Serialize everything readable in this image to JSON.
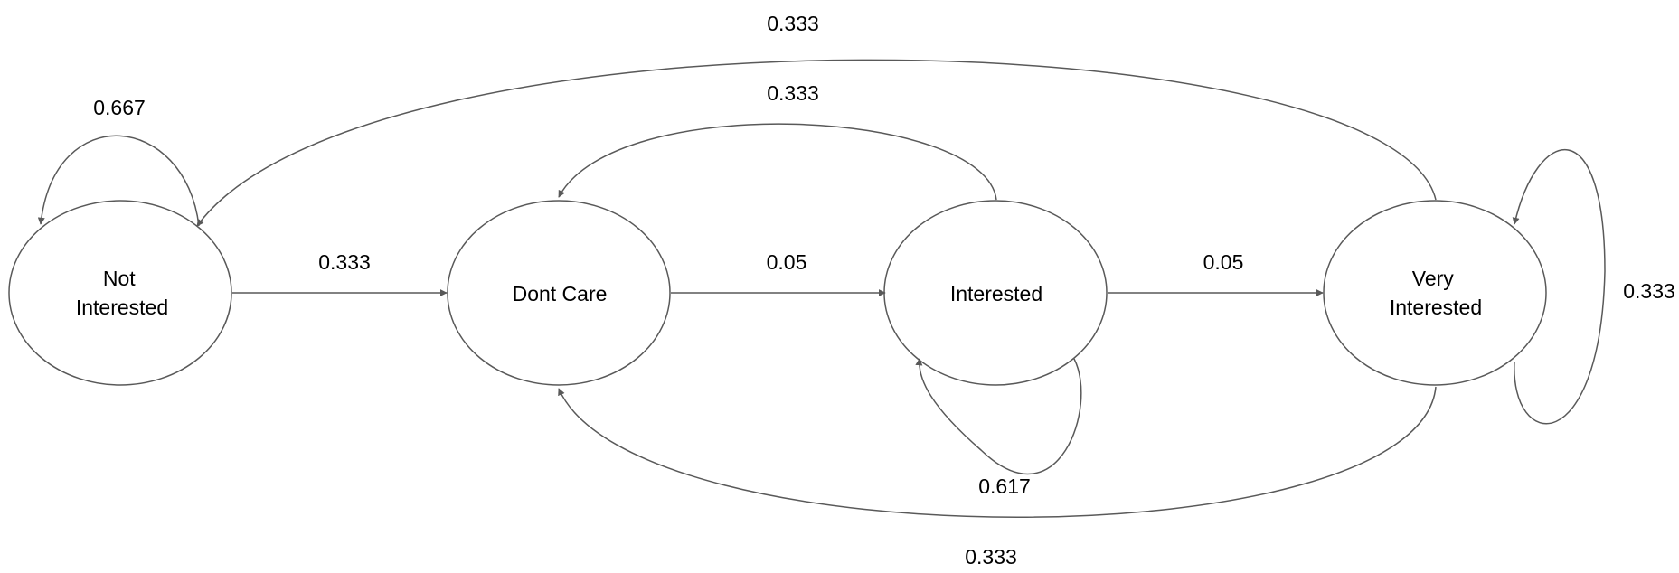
{
  "nodes": {
    "not_interested": {
      "line1": "Not",
      "line2": "Interested"
    },
    "dont_care": {
      "label": "Dont Care"
    },
    "interested": {
      "label": "Interested"
    },
    "very_interested": {
      "line1": "Very",
      "line2": "Interested"
    }
  },
  "edges": {
    "not_to_not": "0.667",
    "not_to_dont": "0.333",
    "dont_to_interested": "0.05",
    "interested_to_dont": "0.333",
    "interested_to_interested": "0.617",
    "interested_to_very": "0.05",
    "very_to_not": "0.333",
    "very_to_very": "0.333",
    "very_to_dont": "0.333"
  }
}
